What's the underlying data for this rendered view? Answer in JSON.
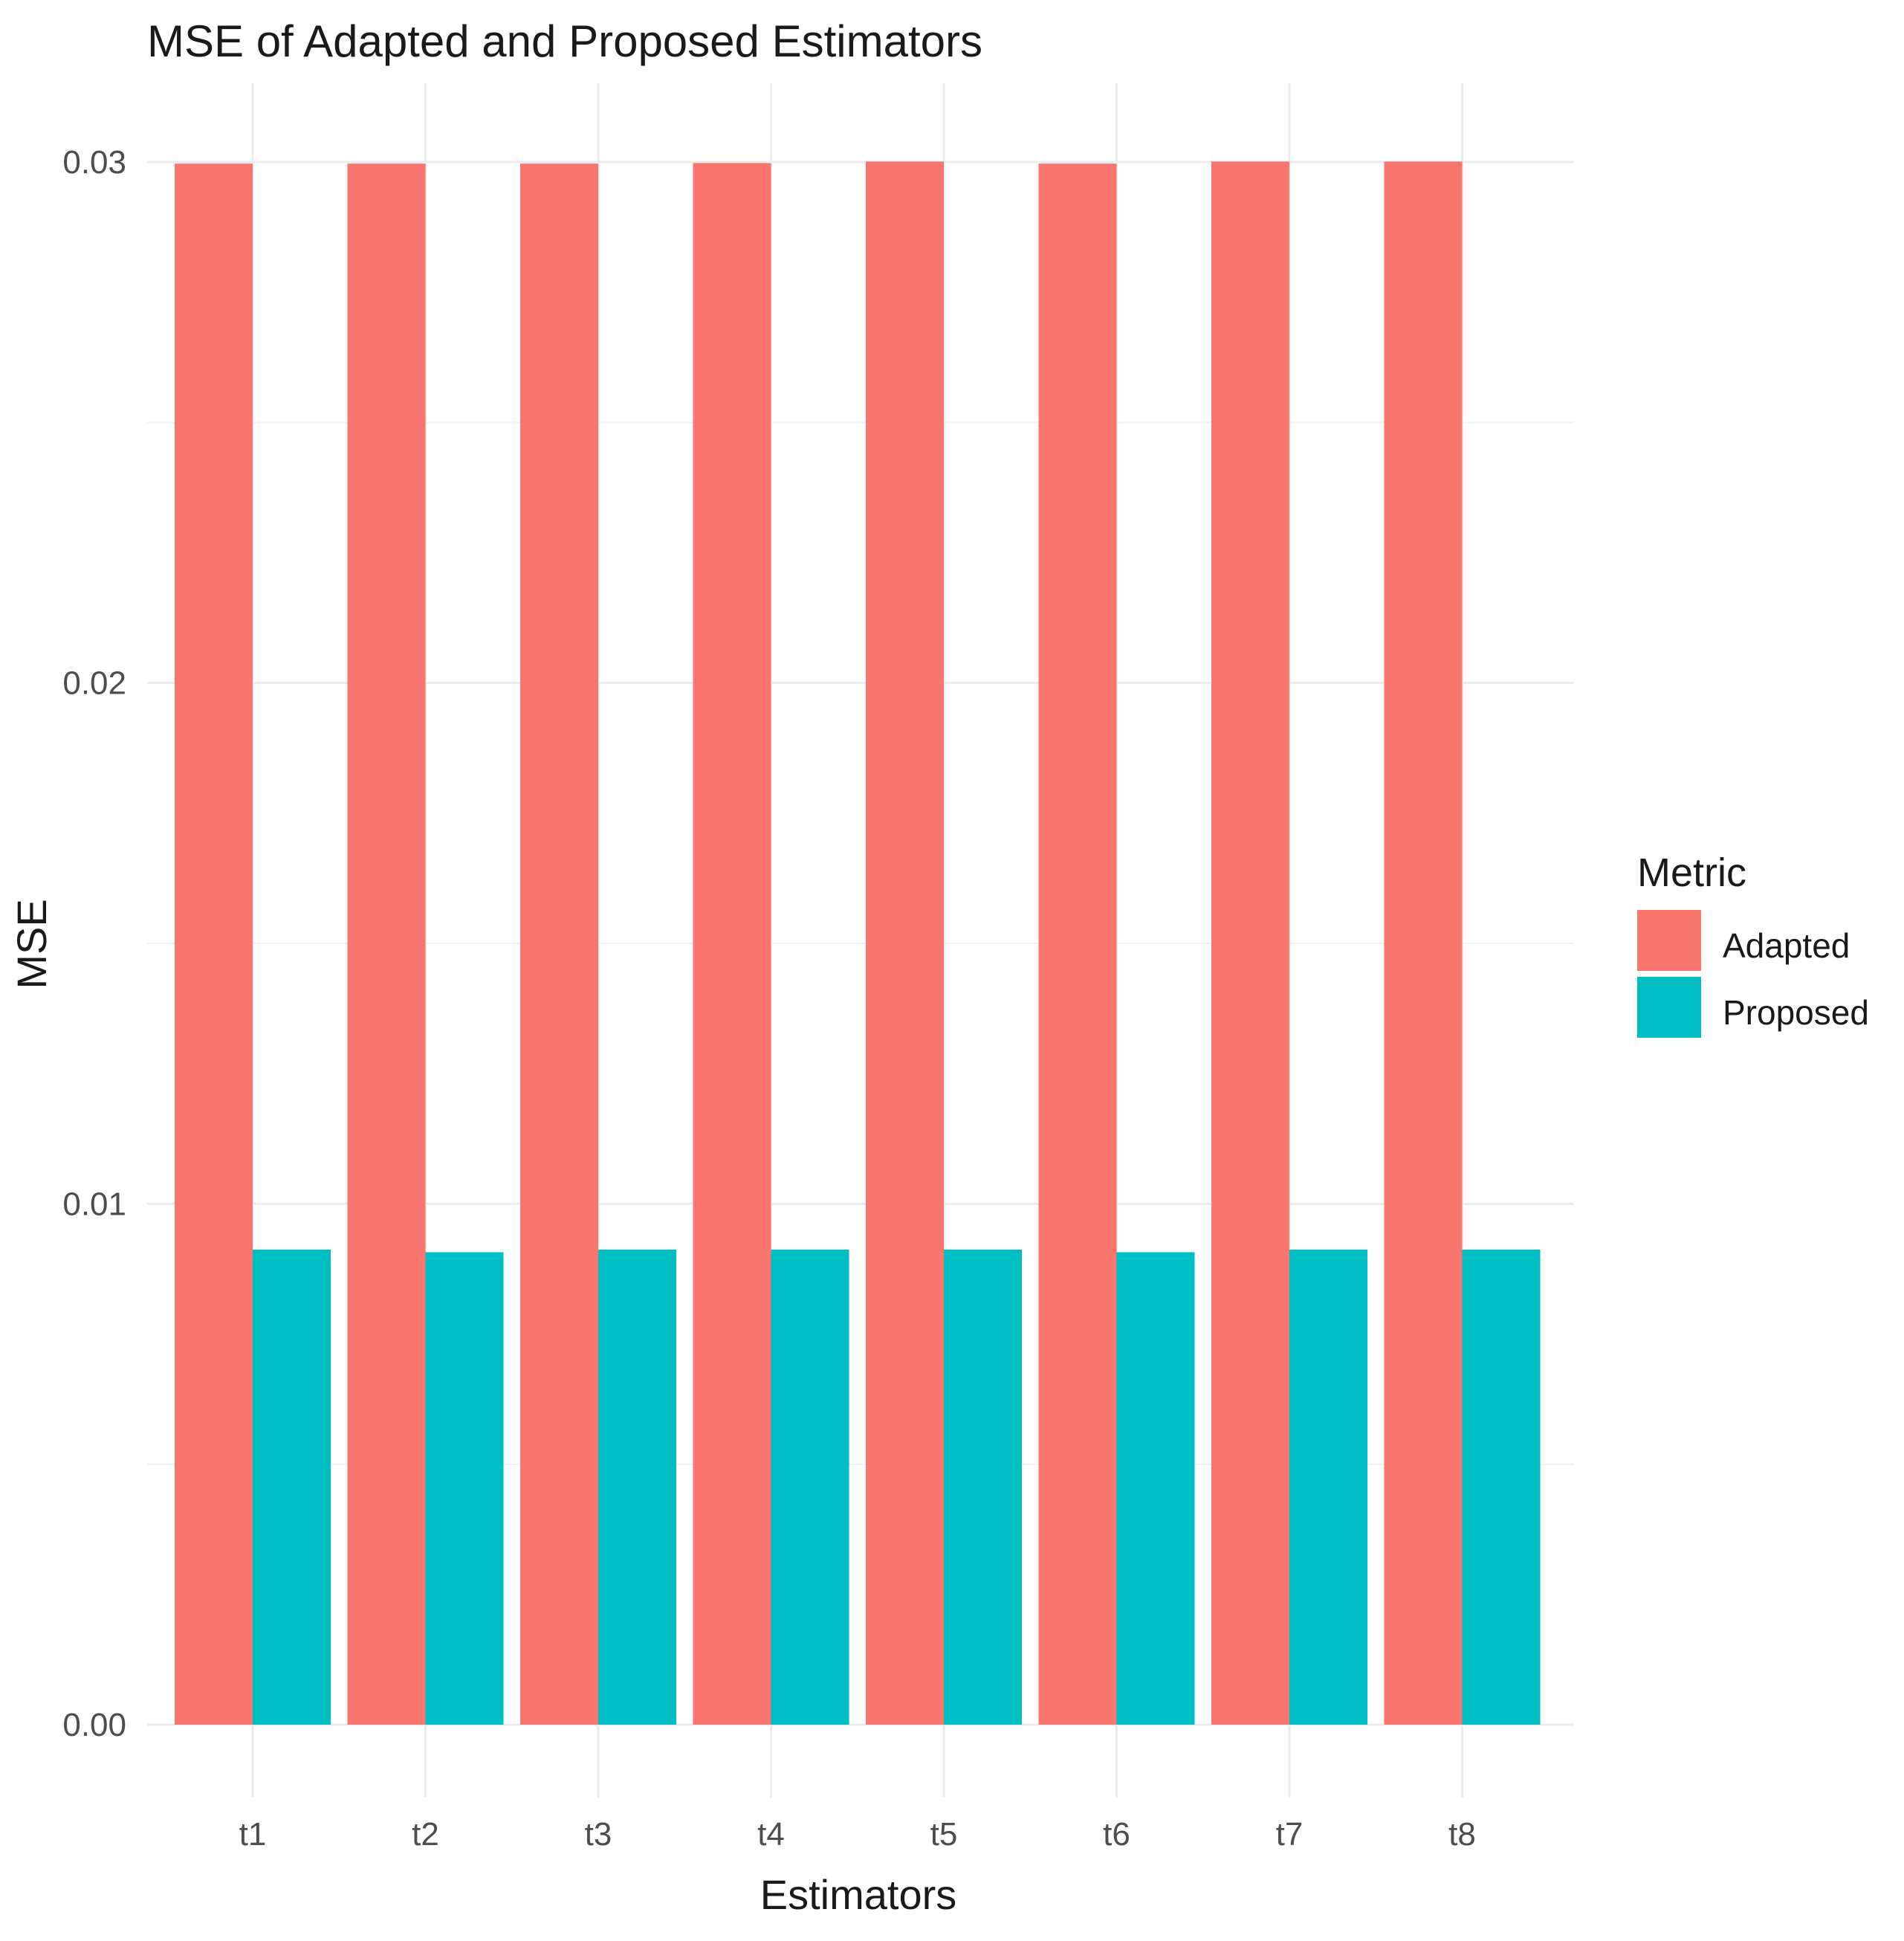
{
  "chart_data": {
    "type": "bar",
    "title": "MSE of Adapted and Proposed Estimators",
    "xlabel": "Estimators",
    "ylabel": "MSE",
    "categories": [
      "t1",
      "t2",
      "t3",
      "t4",
      "t5",
      "t6",
      "t7",
      "t8"
    ],
    "series": [
      {
        "name": "Adapted",
        "color": "#F8766D",
        "values": [
          0.02997,
          0.02997,
          0.02997,
          0.02998,
          0.03001,
          0.02997,
          0.03001,
          0.03001
        ]
      },
      {
        "name": "Proposed",
        "color": "#00BFC4",
        "values": [
          0.00912,
          0.00907,
          0.00912,
          0.00912,
          0.00912,
          0.00907,
          0.00912,
          0.00912
        ]
      }
    ],
    "ylim": [
      0,
      0.03
    ],
    "yticks": [
      "0.00",
      "0.01",
      "0.02",
      "0.03"
    ],
    "ytick_values": [
      0,
      0.01,
      0.02,
      0.03
    ],
    "grid": true,
    "legend": {
      "title": "Metric",
      "position": "right"
    }
  }
}
